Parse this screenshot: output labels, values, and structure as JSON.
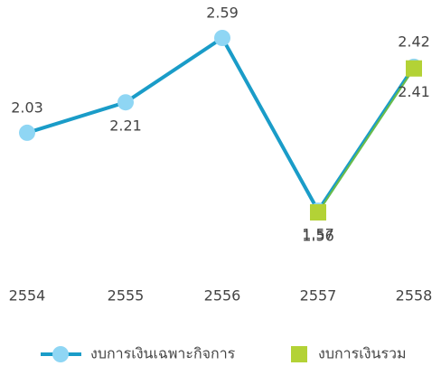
{
  "chart_data": {
    "type": "line",
    "categories": [
      "2554",
      "2555",
      "2556",
      "2557",
      "2558"
    ],
    "series": [
      {
        "name": "งบการเงินเฉพาะกิจการ",
        "color": "#1a9cc8",
        "marker_color": "#8fd6f4",
        "marker": "circle",
        "values": [
          2.03,
          2.21,
          2.59,
          1.57,
          2.42
        ]
      },
      {
        "name": "งบการเงินรวม",
        "color": "#6cbd45",
        "marker_color": "#b3d236",
        "marker": "square",
        "values": [
          null,
          null,
          null,
          1.56,
          2.41
        ]
      }
    ],
    "legend": "bottom"
  }
}
